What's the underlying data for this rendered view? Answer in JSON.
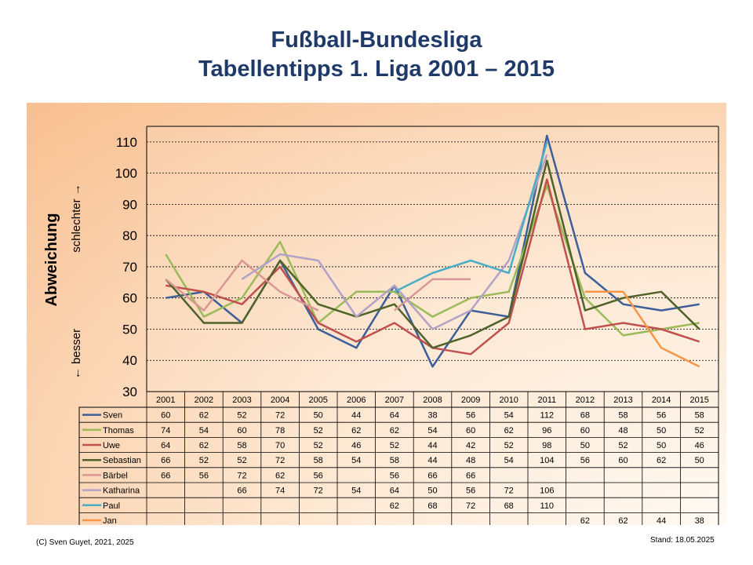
{
  "title_line1": "Fußball-Bundesliga",
  "title_line2": "Tabellentipps 1. Liga 2001 – 2015",
  "footer_left": "(C) Sven Guyet, 2021, 2025",
  "footer_right": "Stand: 18.05.2025",
  "chart_data": {
    "type": "line",
    "title": "Tabellentipps 1. Liga 2001 – 2015",
    "ylabel": "Abweichung",
    "ylabel_low": "← besser",
    "ylabel_high": "schlechter →",
    "ylim": [
      30,
      115
    ],
    "yticks": [
      30,
      40,
      50,
      60,
      70,
      80,
      90,
      100,
      110
    ],
    "grid": "horizontal dashed",
    "categories": [
      "2001",
      "2002",
      "2003",
      "2004",
      "2005",
      "2006",
      "2007",
      "2008",
      "2009",
      "2010",
      "2011",
      "2012",
      "2013",
      "2014",
      "2015"
    ],
    "series": [
      {
        "name": "Sven",
        "color": "#3c5f9a",
        "values": [
          60,
          62,
          52,
          72,
          50,
          44,
          64,
          38,
          56,
          54,
          112,
          68,
          58,
          56,
          58
        ]
      },
      {
        "name": "Thomas",
        "color": "#9bbb59",
        "values": [
          74,
          54,
          60,
          78,
          52,
          62,
          62,
          54,
          60,
          62,
          96,
          60,
          48,
          50,
          52
        ]
      },
      {
        "name": "Uwe",
        "color": "#c0504d",
        "values": [
          64,
          62,
          58,
          70,
          52,
          46,
          52,
          44,
          42,
          52,
          98,
          50,
          52,
          50,
          46
        ]
      },
      {
        "name": "Sebastian",
        "color": "#4f6228",
        "values": [
          66,
          52,
          52,
          72,
          58,
          54,
          58,
          44,
          48,
          54,
          104,
          56,
          60,
          62,
          50
        ]
      },
      {
        "name": "Bärbel",
        "color": "#da9694",
        "values": [
          66,
          56,
          72,
          62,
          56,
          null,
          56,
          66,
          66,
          null,
          null,
          null,
          null,
          null,
          null
        ]
      },
      {
        "name": "Katharina",
        "color": "#b3a2c7",
        "values": [
          null,
          null,
          66,
          74,
          72,
          54,
          64,
          50,
          56,
          72,
          106,
          null,
          null,
          null,
          null
        ]
      },
      {
        "name": "Paul",
        "color": "#4bacc6",
        "values": [
          null,
          null,
          null,
          null,
          null,
          null,
          62,
          68,
          72,
          68,
          110,
          null,
          null,
          null,
          null
        ]
      },
      {
        "name": "Jan",
        "color": "#f79646",
        "values": [
          null,
          null,
          null,
          null,
          null,
          null,
          null,
          null,
          null,
          null,
          null,
          62,
          62,
          44,
          38
        ]
      }
    ]
  }
}
